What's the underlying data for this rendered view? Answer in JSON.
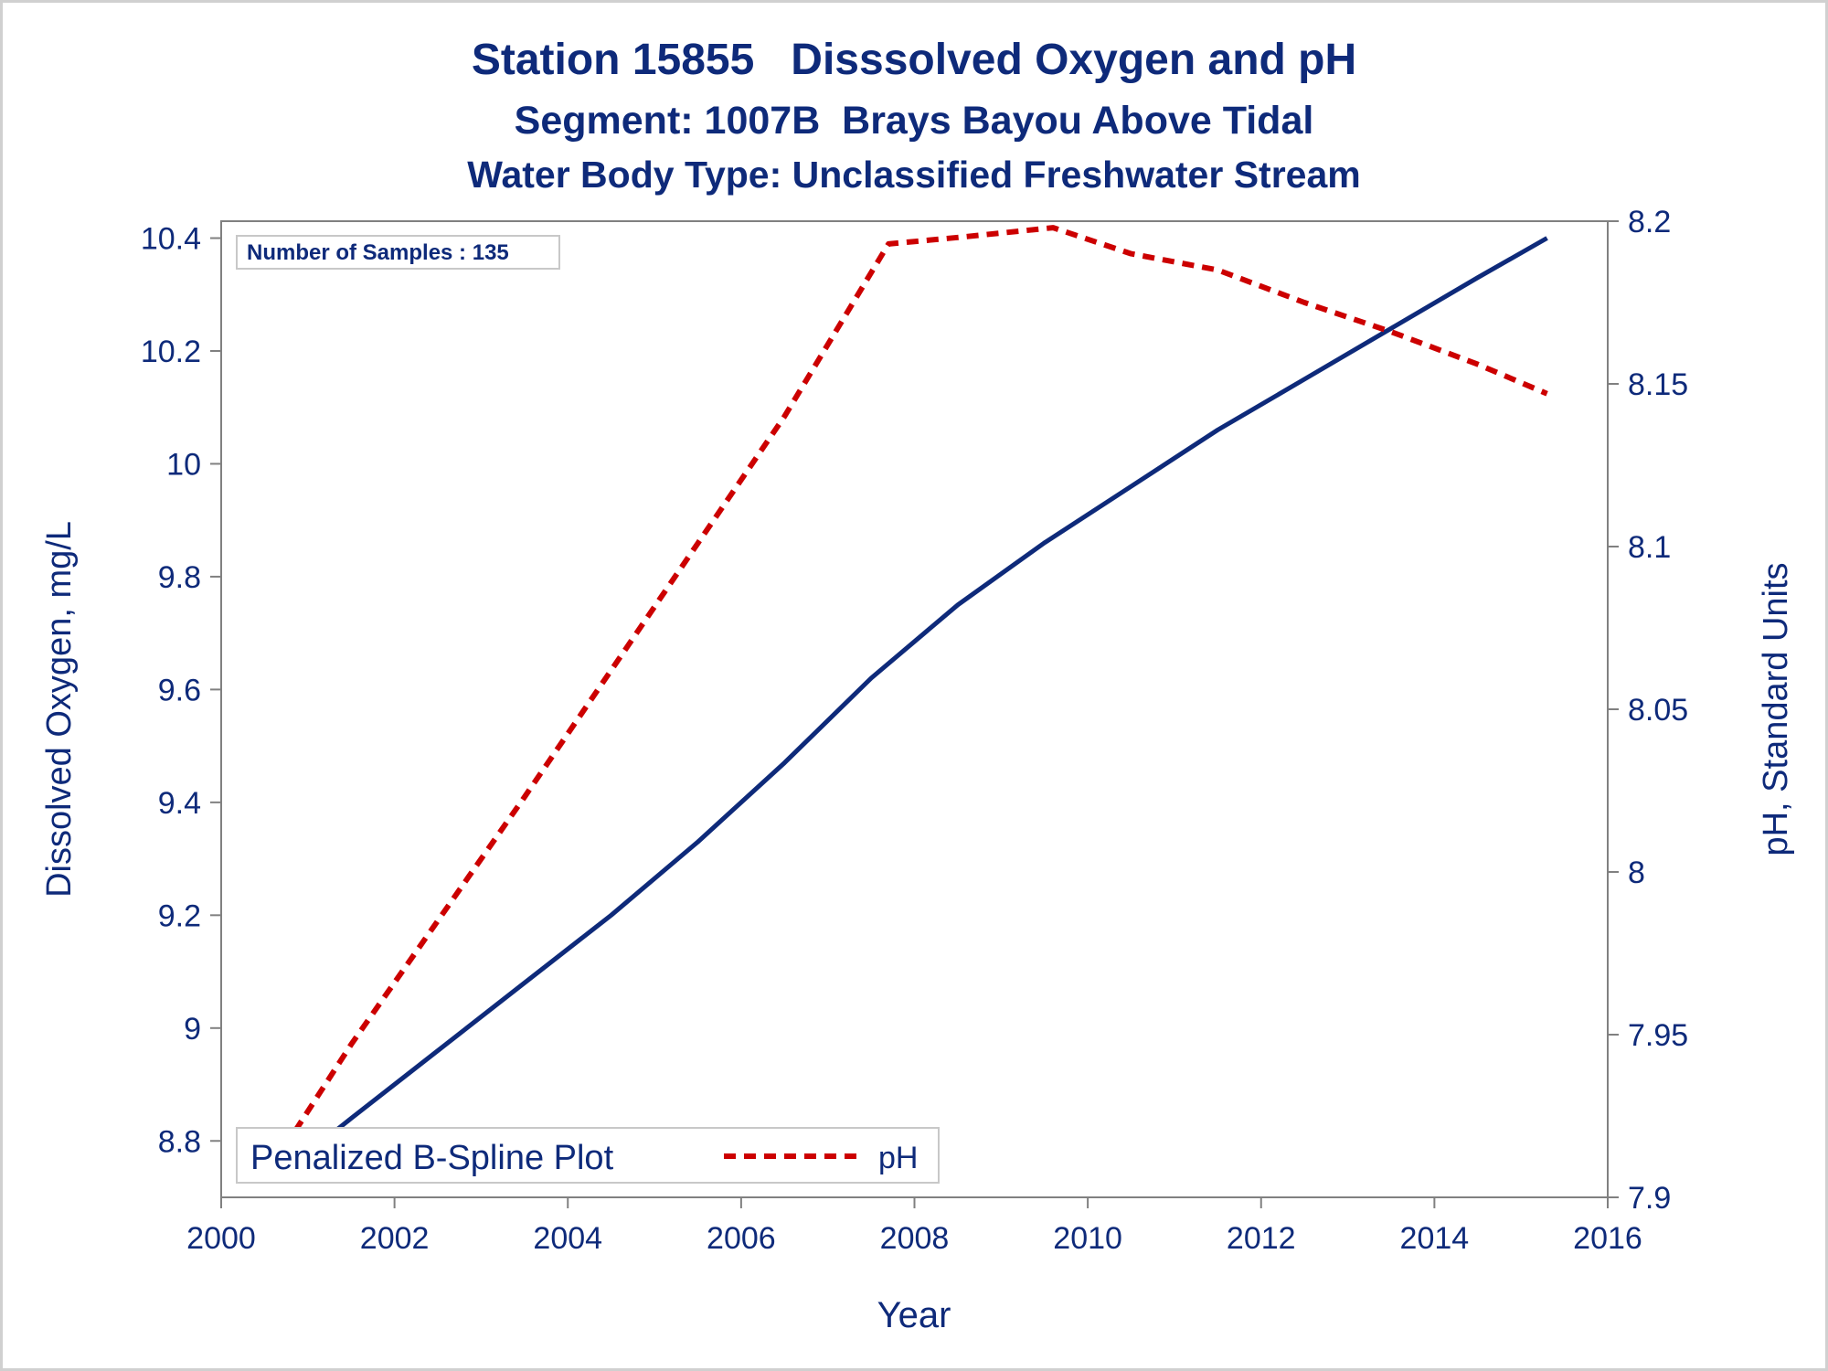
{
  "titles": {
    "line1": "Station 15855   Disssolved Oxygen and pH",
    "line2": "Segment: 1007B  Brays Bayou Above Tidal",
    "line3": "Water Body Type: Unclassified Freshwater Stream"
  },
  "inset_label": "Number of Samples : 135",
  "legend": {
    "title": "Penalized B-Spline Plot",
    "entry": "pH"
  },
  "colors": {
    "text": "#0e2a7a",
    "do_line": "#0e2a7a",
    "ph_line": "#cc0000",
    "axis": "#808080",
    "frame": "#d0d0d0"
  },
  "chart_data": {
    "type": "line",
    "xlabel": "Year",
    "ylabel": "Dissolved Oxygen, mg/L",
    "y2label": "pH, Standard Units",
    "xlim": [
      2000,
      2016
    ],
    "xticks": [
      2000,
      2002,
      2004,
      2006,
      2008,
      2010,
      2012,
      2014,
      2016
    ],
    "ylim": [
      8.7,
      10.43
    ],
    "yticks": [
      8.8,
      9.0,
      9.2,
      9.4,
      9.6,
      9.8,
      10.0,
      10.2,
      10.4
    ],
    "ytick_labels": [
      "8.8",
      "9",
      "9.2",
      "9.4",
      "9.6",
      "9.8",
      "10",
      "10.2",
      "10.4"
    ],
    "y2lim": [
      7.9,
      8.2
    ],
    "y2ticks": [
      7.9,
      7.95,
      8.0,
      8.05,
      8.1,
      8.15,
      8.2
    ],
    "y2tick_labels": [
      "7.9",
      "7.95",
      "8",
      "8.05",
      "8.1",
      "8.15",
      "8.2"
    ],
    "grid": false,
    "legend_position": "bottom-left",
    "series": [
      {
        "axis": "left",
        "style": "solid",
        "x": [
          2000.6,
          2001.5,
          2002.5,
          2003.5,
          2004.5,
          2005.5,
          2006.5,
          2007.5,
          2008.5,
          2009.5,
          2010.5,
          2011.5,
          2012.5,
          2013.5,
          2014.5,
          2015.3
        ],
        "values": [
          8.73,
          8.84,
          8.96,
          9.08,
          9.2,
          9.33,
          9.47,
          9.62,
          9.75,
          9.86,
          9.96,
          10.06,
          10.15,
          10.24,
          10.33,
          10.4
        ]
      },
      {
        "name": "pH",
        "axis": "right",
        "style": "dashed",
        "x": [
          2000.6,
          2001.5,
          2002.5,
          2003.5,
          2004.5,
          2005.5,
          2006.5,
          2007.7,
          2008.5,
          2009.6,
          2010.5,
          2011.5,
          2012.5,
          2013.5,
          2014.5,
          2015.3
        ],
        "values": [
          7.91,
          7.947,
          7.985,
          8.023,
          8.062,
          8.101,
          8.14,
          8.193,
          8.195,
          8.198,
          8.19,
          8.185,
          8.175,
          8.166,
          8.156,
          8.147
        ]
      }
    ]
  }
}
